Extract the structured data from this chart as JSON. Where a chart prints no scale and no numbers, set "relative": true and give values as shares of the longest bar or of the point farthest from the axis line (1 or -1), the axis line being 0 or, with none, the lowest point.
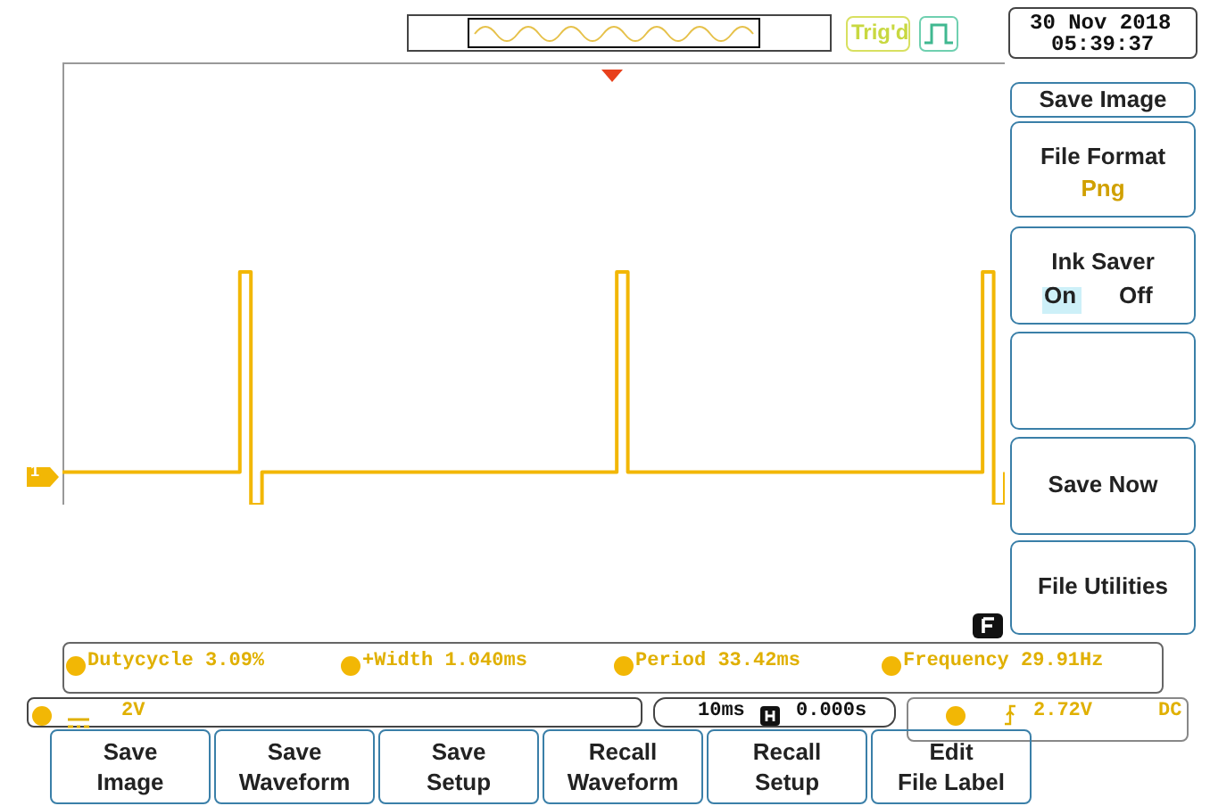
{
  "chart_data": {
    "type": "step",
    "relative": true,
    "categories": [
      null,
      null,
      null,
      null,
      null,
      null,
      null,
      null,
      null,
      null,
      null,
      null,
      null,
      null,
      null,
      null,
      null,
      null,
      null,
      null,
      null,
      null,
      null,
      null,
      null,
      null,
      null,
      null,
      null,
      null,
      null,
      null,
      null,
      null,
      null,
      null,
      null,
      null,
      null,
      null,
      null,
      null,
      null,
      null,
      null,
      null,
      null,
      null,
      null,
      null,
      null,
      null,
      null,
      null,
      null,
      null,
      null,
      null,
      null,
      null,
      null,
      null,
      null,
      null,
      null,
      null,
      null,
      null,
      null,
      null,
      null,
      null,
      null,
      null,
      null,
      null,
      null,
      null,
      null,
      null,
      null,
      null,
      null,
      null,
      null,
      null
    ],
    "series": [
      {
        "color": "#f2b705",
        "values": [
          0.14,
          0.14,
          0.14,
          0.14,
          0.14,
          0.14,
          0.14,
          0.14,
          0.14,
          0.14,
          0.14,
          0.14,
          0.14,
          0.14,
          0.14,
          0.14,
          1,
          0,
          0.14,
          0.14,
          0.14,
          0.14,
          0.14,
          0.14,
          0.14,
          0.14,
          0.14,
          0.14,
          0.14,
          0.14,
          0.14,
          0.14,
          0.14,
          0.14,
          0.14,
          0.14,
          0.14,
          0.14,
          0.14,
          0.14,
          0.14,
          0.14,
          0.14,
          0.14,
          0.14,
          0.14,
          0.14,
          0.14,
          0.14,
          0.14,
          1,
          0.14,
          0.14,
          0.14,
          0.14,
          0.14,
          0.14,
          0.14,
          0.14,
          0.14,
          0.14,
          0.14,
          0.14,
          0.14,
          0.14,
          0.14,
          0.14,
          0.14,
          0.14,
          0.14,
          0.14,
          0.14,
          0.14,
          0.14,
          0.14,
          0.14,
          0.14,
          0.14,
          0.14,
          0.14,
          0.14,
          0.14,
          0.14,
          1,
          0,
          0.14
        ]
      }
    ],
    "annotations": [
      "Trig'd",
      "30 Nov 2018",
      "05:39:37",
      "1",
      "Save Image",
      "File Format",
      "Png",
      "Ink Saver",
      "On",
      "Off",
      "Save Now",
      "File Utilities",
      "Dutycycle 3.09%",
      "+Width 1.040ms",
      "Period 33.42ms",
      "Frequency 29.91Hz",
      "2V",
      "10ms",
      "0.000s",
      "2.72V",
      "DC",
      "Save Image",
      "Save Waveform",
      "Save Setup",
      "Recall Waveform",
      "Recall Setup",
      "Edit File Label"
    ]
  }
}
